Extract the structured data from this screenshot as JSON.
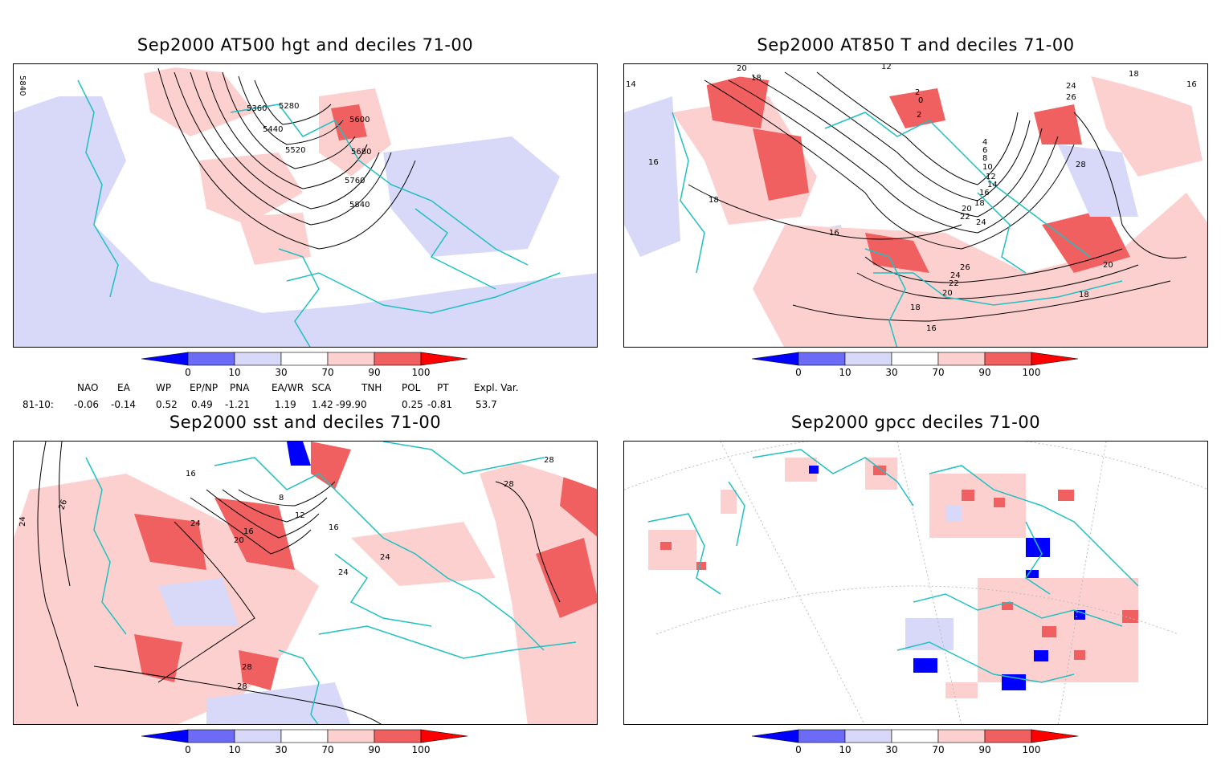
{
  "panels": [
    {
      "id": "p1",
      "title": "Sep2000 AT500 hgt and deciles 71-00",
      "contour_labels": [
        "5840",
        "5280",
        "5360",
        "5440",
        "5520",
        "5600",
        "5680",
        "5760",
        "5840"
      ]
    },
    {
      "id": "p2",
      "title": "Sep2000 AT850 T and deciles 71-00",
      "contour_labels": [
        "20",
        "18",
        "14",
        "12",
        "16",
        "18",
        "16",
        "24",
        "26",
        "28",
        "16",
        "18",
        "4",
        "6",
        "8",
        "10",
        "12",
        "14",
        "16",
        "18",
        "20",
        "22",
        "24",
        "26",
        "24",
        "22",
        "20",
        "18",
        "16",
        "20",
        "18",
        "0",
        "2",
        "2"
      ]
    },
    {
      "id": "p3",
      "title": "Sep2000 sst and deciles 71-00",
      "contour_labels": [
        "24",
        "26",
        "16",
        "24",
        "8",
        "12",
        "16",
        "20",
        "16",
        "24",
        "24",
        "28",
        "28",
        "28",
        "28"
      ]
    },
    {
      "id": "p4",
      "title": "Sep2000 gpcc deciles 71-00",
      "contour_labels": []
    }
  ],
  "colorbar": {
    "ticks": [
      "0",
      "10",
      "30",
      "70",
      "90",
      "100"
    ],
    "colors": [
      "#0000ff",
      "#6b6bf5",
      "#d8d8f8",
      "#ffffff",
      "#fdd0d0",
      "#f06060",
      "#ff0000"
    ]
  },
  "indices": {
    "row_label": "81-10:",
    "names": [
      "NAO",
      "EA",
      "WP",
      "EP/NP",
      "PNA",
      "EA/WR",
      "SCA",
      "TNH",
      "POL",
      "PT",
      "Expl. Var."
    ],
    "values": [
      "-0.06",
      "-0.14",
      "0.52",
      "0.49",
      "-1.21",
      "1.19",
      "1.42",
      "-99.90",
      "0.25",
      "-0.81",
      "53.7"
    ]
  }
}
